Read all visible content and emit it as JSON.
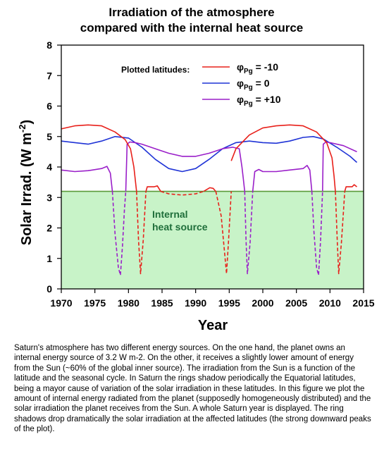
{
  "chart_data": {
    "type": "line",
    "title": [
      "Irradiation of the atmosphere",
      "compared with the internal heat source"
    ],
    "xlabel": "Year",
    "ylabel_main": "Solar Irrad. (W m",
    "ylabel_exp": "-2",
    "ylabel_close": ")",
    "xlim": [
      1970,
      2015
    ],
    "ylim": [
      0,
      8
    ],
    "xticks": [
      1970,
      1975,
      1980,
      1985,
      1990,
      1995,
      2000,
      2005,
      2010,
      2015
    ],
    "yticks": [
      0,
      1,
      2,
      3,
      4,
      5,
      6,
      7,
      8
    ],
    "grid": false,
    "legend": {
      "title": "Plotted latitudes:",
      "placement": "top-right",
      "entries": [
        {
          "sym": "φ",
          "sub": "Pg",
          "text": " = -10",
          "color": "#e8201a"
        },
        {
          "sym": "φ",
          "sub": "Pg",
          "text": " = 0",
          "color": "#1f33d6"
        },
        {
          "sym": "φ",
          "sub": "Pg",
          "text": " = +10",
          "color": "#9a1fc9"
        }
      ]
    },
    "internal_heat": {
      "value": 3.2,
      "label": [
        "Internal",
        "heat source"
      ],
      "fill": "#c8f3c8",
      "line": "#5a9a3a",
      "text_color": "#1f6e3a"
    },
    "series": [
      {
        "name": "φPg = 0",
        "color": "#1f33d6",
        "segments": [
          {
            "dashed": false,
            "x": [
              1970,
              1972,
              1974,
              1976,
              1978,
              1980,
              1982,
              1984,
              1986,
              1988,
              1990,
              1992,
              1994,
              1996,
              1998,
              2000,
              2002,
              2004,
              2006,
              2007.5,
              2009,
              2011,
              2013,
              2014
            ],
            "y": [
              4.85,
              4.8,
              4.75,
              4.85,
              5.0,
              4.95,
              4.65,
              4.25,
              3.95,
              3.85,
              3.95,
              4.25,
              4.6,
              4.8,
              4.85,
              4.8,
              4.78,
              4.85,
              4.97,
              5.0,
              4.92,
              4.65,
              4.35,
              4.15
            ]
          }
        ]
      },
      {
        "name": "φPg = +10",
        "color": "#9a1fc9",
        "segments": [
          {
            "dashed": false,
            "x": [
              1970,
              1972,
              1974,
              1976,
              1976.8,
              1977.3,
              1977.6
            ],
            "y": [
              3.9,
              3.85,
              3.88,
              3.95,
              4.02,
              3.8,
              3.2
            ]
          },
          {
            "dashed": true,
            "x": [
              1977.6,
              1978.0,
              1978.5,
              1978.8,
              1979.1,
              1979.4,
              1979.6
            ],
            "y": [
              3.2,
              1.8,
              0.7,
              0.45,
              1.4,
              2.6,
              3.2
            ]
          },
          {
            "dashed": false,
            "x": [
              1979.6,
              1979.8,
              1980.2,
              1981.0,
              1982,
              1984,
              1986,
              1988,
              1990,
              1992,
              1994,
              1995.5,
              1996.5,
              1996.9,
              1997.1,
              1997.3
            ],
            "y": [
              3.2,
              4.75,
              4.82,
              4.8,
              4.75,
              4.6,
              4.45,
              4.35,
              4.35,
              4.45,
              4.6,
              4.65,
              4.6,
              4.0,
              3.6,
              3.2
            ]
          },
          {
            "dashed": true,
            "x": [
              1997.3,
              1997.5,
              1997.7,
              1998.1,
              1998.5
            ],
            "y": [
              3.2,
              1.6,
              0.5,
              1.5,
              3.2
            ]
          },
          {
            "dashed": false,
            "x": [
              1998.5,
              1998.8,
              1999.4,
              2000,
              2002,
              2004,
              2006,
              2006.6,
              2007.0,
              2007.3
            ],
            "y": [
              3.2,
              3.85,
              3.92,
              3.85,
              3.85,
              3.9,
              3.95,
              4.05,
              3.9,
              3.2
            ]
          },
          {
            "dashed": true,
            "x": [
              2007.3,
              2007.6,
              2008.0,
              2008.3,
              2008.6,
              2008.9
            ],
            "y": [
              3.2,
              1.9,
              0.7,
              0.45,
              1.6,
              3.2
            ]
          },
          {
            "dashed": false,
            "x": [
              2008.9,
              2009.0,
              2009.4,
              2010,
              2012,
              2014
            ],
            "y": [
              3.2,
              4.75,
              4.82,
              4.8,
              4.7,
              4.5
            ]
          }
        ]
      },
      {
        "name": "φPg = -10",
        "color": "#e8201a",
        "segments": [
          {
            "dashed": false,
            "x": [
              1970,
              1972,
              1974,
              1976,
              1978,
              1979.5,
              1980.3,
              1980.8,
              1981.0,
              1981.2
            ],
            "y": [
              5.25,
              5.35,
              5.38,
              5.35,
              5.15,
              4.9,
              4.6,
              4.0,
              3.6,
              3.2
            ]
          },
          {
            "dashed": true,
            "x": [
              1981.2,
              1981.5,
              1981.8,
              1982.2,
              1982.6
            ],
            "y": [
              3.2,
              1.6,
              0.5,
              1.6,
              3.2
            ]
          },
          {
            "dashed": false,
            "x": [
              1982.6,
              1982.8,
              1983.8,
              1984.3,
              1984.8
            ],
            "y": [
              3.2,
              3.35,
              3.35,
              3.38,
              3.2
            ]
          },
          {
            "dashed": true,
            "x": [
              1984.8,
              1986,
              1988,
              1990,
              1991.2
            ],
            "y": [
              3.2,
              3.12,
              3.08,
              3.12,
              3.2
            ]
          },
          {
            "dashed": false,
            "x": [
              1991.2,
              1992.1,
              1992.6,
              1993.0
            ],
            "y": [
              3.2,
              3.32,
              3.3,
              3.2
            ]
          },
          {
            "dashed": true,
            "x": [
              1993.0,
              1993.8,
              1994.3,
              1994.6,
              1994.9,
              1995.3
            ],
            "y": [
              3.2,
              2.4,
              1.2,
              0.5,
              1.6,
              3.2
            ]
          },
          {
            "dashed": false,
            "x": [
              1995.3,
              1996,
              1998,
              2000,
              2002,
              2004,
              2006,
              2008,
              2009.5,
              2010.3,
              2010.6,
              2010.8
            ],
            "y": [
              4.2,
              4.6,
              5.05,
              5.28,
              5.35,
              5.38,
              5.35,
              5.15,
              4.8,
              4.3,
              3.7,
              3.2
            ]
          },
          {
            "dashed": true,
            "x": [
              2010.8,
              2011.1,
              2011.3,
              2011.7,
              2012.2
            ],
            "y": [
              3.2,
              1.5,
              0.5,
              1.5,
              3.2
            ]
          },
          {
            "dashed": false,
            "x": [
              2012.2,
              2012.4,
              2013.3,
              2013.6,
              2014
            ],
            "y": [
              3.2,
              3.35,
              3.35,
              3.42,
              3.35
            ]
          }
        ]
      }
    ]
  },
  "caption": "Saturn's atmosphere has two different energy sources. On the one hand, the planet owns an internal energy source of 3.2 W m-2. On the other, it receives a slightly lower amount of energy from the Sun (~60% of the global inner source). The irradiation from the Sun is a function of the latitude and the seasonal cycle. In Saturn the rings shadow periodically the Equatorial latitudes, being a mayor cause of variation of the solar irradiation in these latitudes. In this figure we plot the amount of internal energy radiated from the planet (supposedly homogeneously distributed) and the solar irradiation the planet receives from the Sun. A whole Saturn year is displayed. The ring shadows drop dramatically the solar irradiation at the affected latitudes (the strong downward peaks of the plot)."
}
